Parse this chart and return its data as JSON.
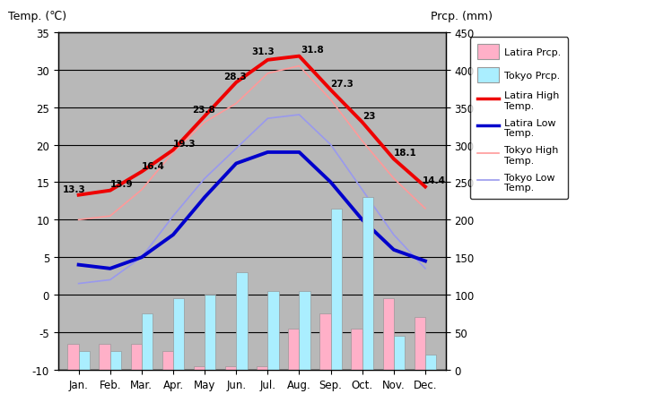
{
  "months": [
    "Jan.",
    "Feb.",
    "Mar.",
    "Apr.",
    "May",
    "Jun.",
    "Jul.",
    "Aug.",
    "Sep.",
    "Oct.",
    "Nov.",
    "Dec."
  ],
  "latira_high": [
    13.3,
    13.9,
    16.4,
    19.3,
    23.8,
    28.3,
    31.3,
    31.8,
    27.3,
    23.0,
    18.1,
    14.4
  ],
  "latira_low": [
    4.0,
    3.5,
    5.0,
    8.0,
    13.0,
    17.5,
    19.0,
    19.0,
    15.0,
    10.0,
    6.0,
    4.5
  ],
  "tokyo_high": [
    10.0,
    10.5,
    14.0,
    19.0,
    23.0,
    25.5,
    29.5,
    30.5,
    26.0,
    20.5,
    15.5,
    11.5
  ],
  "tokyo_low": [
    1.5,
    2.0,
    5.0,
    10.5,
    15.5,
    19.5,
    23.5,
    24.0,
    20.0,
    14.0,
    8.0,
    3.5
  ],
  "latira_prcp_mm": [
    35,
    35,
    35,
    25,
    5,
    5,
    5,
    55,
    75,
    55,
    95,
    70
  ],
  "tokyo_prcp_mm": [
    25,
    25,
    75,
    95,
    100,
    130,
    105,
    105,
    215,
    230,
    45,
    20
  ],
  "temp_ylim": [
    -10,
    35
  ],
  "prcp_ylim": [
    0,
    450
  ],
  "temp_yticks": [
    -10,
    -5,
    0,
    5,
    10,
    15,
    20,
    25,
    30,
    35
  ],
  "prcp_yticks": [
    0,
    50,
    100,
    150,
    200,
    250,
    300,
    350,
    400,
    450
  ],
  "latira_high_color": "#EE0000",
  "latira_low_color": "#0000CC",
  "tokyo_high_color": "#FF9999",
  "tokyo_low_color": "#9999EE",
  "latira_prcp_color": "#FFB0C8",
  "tokyo_prcp_color": "#AAEEFF",
  "bg_color": "#B8B8B8",
  "title_left": "Temp. (℃)",
  "title_right": "Prcp. (mm)",
  "latira_high_labels": [
    "13.3",
    "13.9",
    "16.4",
    "19.3",
    "23.8",
    "28.3",
    "31.3",
    "31.8",
    "27.3",
    "23",
    "18.1",
    "14.4"
  ],
  "legend_labels": [
    "Latira Prcp.",
    "Tokyo Prcp.",
    "Latira High\nTemp.",
    "Latira Low\nTemp.",
    "Tokyo High\nTemp.",
    "Tokyo Low\nTemp."
  ]
}
